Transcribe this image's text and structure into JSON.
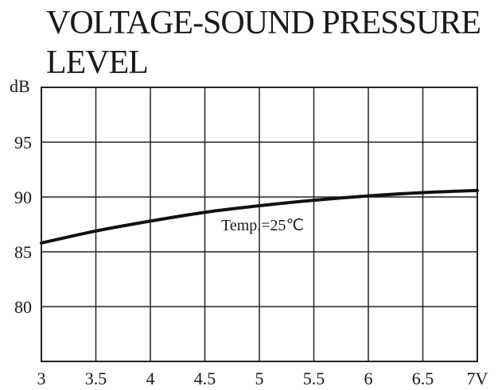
{
  "chart_data": {
    "type": "line",
    "title": "VOLTAGE-SOUND PRESSURE LEVEL",
    "ylabel": "dB",
    "xlim": [
      3,
      7
    ],
    "ylim": [
      75,
      100
    ],
    "x_ticks": [
      "3",
      "3.5",
      "4",
      "4.5",
      "5",
      "5.5",
      "6",
      "6.5",
      "7V"
    ],
    "y_ticks": [
      "80",
      "85",
      "90",
      "95"
    ],
    "grid": true,
    "annotation": "Temp.=25℃",
    "series": [
      {
        "x": [
          3,
          3.5,
          4,
          4.5,
          5,
          5.5,
          6,
          6.5,
          7
        ],
        "values": [
          85.8,
          86.9,
          87.8,
          88.6,
          89.2,
          89.7,
          90.1,
          90.4,
          90.6
        ]
      }
    ],
    "colors": {
      "line": "#111111",
      "grid": "#222222"
    }
  }
}
